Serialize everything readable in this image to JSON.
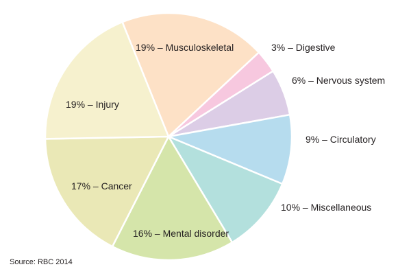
{
  "chart_data": {
    "type": "pie",
    "title": "",
    "slices": [
      {
        "label": "19% – Musculoskeletal",
        "value": 19,
        "color": "#fde1c6"
      },
      {
        "label": "3% – Digestive",
        "value": 3,
        "color": "#f7c8df"
      },
      {
        "label": "6% – Nervous system",
        "value": 6,
        "color": "#dccde6"
      },
      {
        "label": "9% – Circulatory",
        "value": 9,
        "color": "#b6dcee"
      },
      {
        "label": "10% – Miscellaneous",
        "value": 10,
        "color": "#b3e0dd"
      },
      {
        "label": "16% – Mental disorder",
        "value": 16,
        "color": "#d5e5aa"
      },
      {
        "label": "17% – Cancer",
        "value": 17,
        "color": "#eae8b6"
      },
      {
        "label": "19% – Injury",
        "value": 19,
        "color": "#f6f1ce"
      }
    ],
    "start_angle_deg": -22,
    "direction": "clockwise",
    "legend": "none",
    "slice_border_color": "#ffffff"
  },
  "source": "Source: RBC 2014"
}
